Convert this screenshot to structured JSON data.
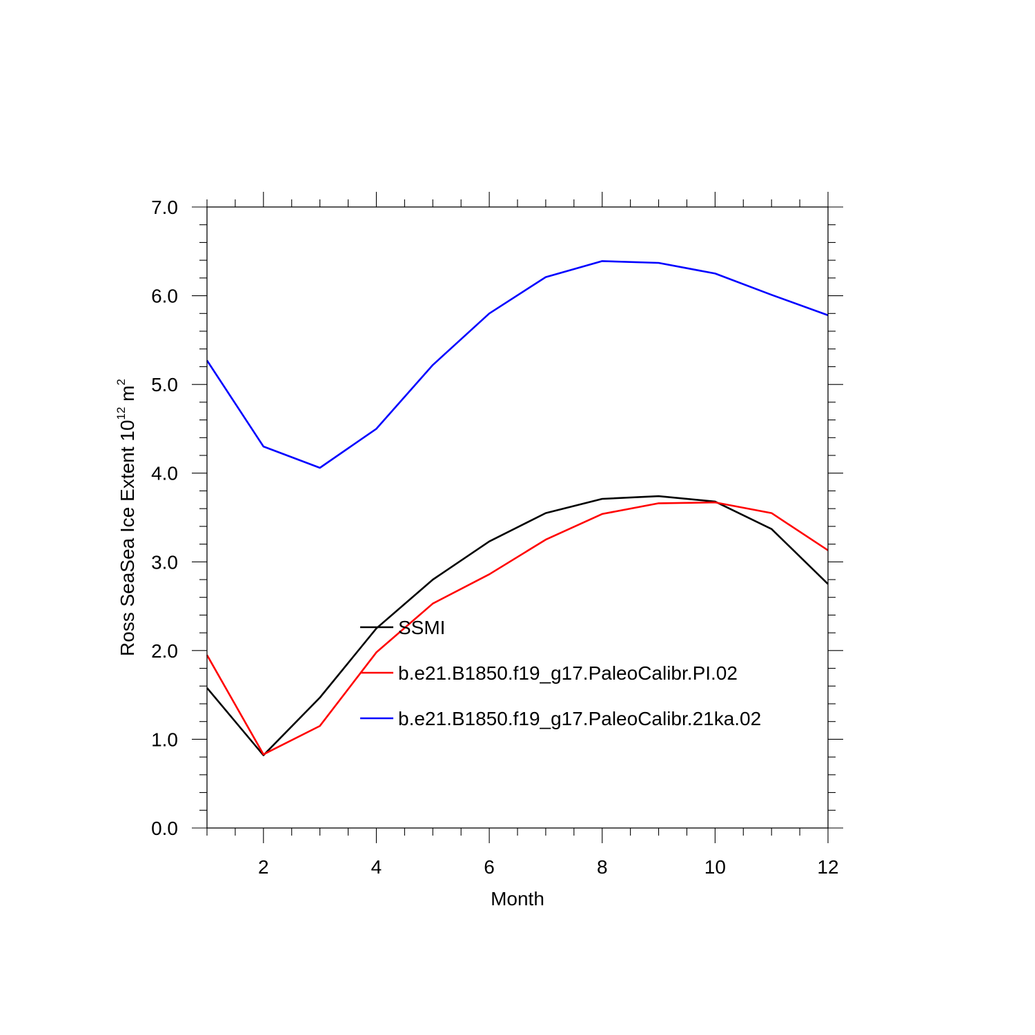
{
  "chart_data": {
    "type": "line",
    "title": "",
    "xlabel": "Month",
    "ylabel_main": "Ross SeaSea Ice Extent 10",
    "ylabel_exp": "12",
    "ylabel_unit": " m",
    "ylabel_unit_exp": "2",
    "xlim": [
      1,
      12
    ],
    "ylim": [
      0,
      7
    ],
    "x_ticks": [
      2,
      4,
      6,
      8,
      10,
      12
    ],
    "x_tick_labels": [
      "2",
      "4",
      "6",
      "8",
      "10",
      "12"
    ],
    "y_ticks": [
      0,
      1,
      2,
      3,
      4,
      5,
      6,
      7
    ],
    "y_tick_labels": [
      "0.0",
      "1.0",
      "2.0",
      "3.0",
      "4.0",
      "5.0",
      "6.0",
      "7.0"
    ],
    "grid": false,
    "legend_position": "inside-center",
    "x": [
      1,
      2,
      3,
      4,
      5,
      6,
      7,
      8,
      9,
      10,
      11,
      12
    ],
    "series": [
      {
        "name": "SSMI",
        "color": "#000000",
        "values": [
          1.58,
          0.82,
          1.47,
          2.25,
          2.8,
          3.23,
          3.55,
          3.71,
          3.74,
          3.68,
          3.37,
          2.75
        ]
      },
      {
        "name": "b.e21.B1850.f19_g17.PaleoCalibr.PI.02",
        "color": "#ff0000",
        "values": [
          1.95,
          0.83,
          1.15,
          1.98,
          2.53,
          2.86,
          3.25,
          3.54,
          3.66,
          3.67,
          3.55,
          3.13
        ]
      },
      {
        "name": "b.e21.B1850.f19_g17.PaleoCalibr.21ka.02",
        "color": "#0000ff",
        "values": [
          5.27,
          4.3,
          4.06,
          4.5,
          5.22,
          5.8,
          6.21,
          6.39,
          6.37,
          6.25,
          6.01,
          5.78
        ]
      }
    ]
  }
}
